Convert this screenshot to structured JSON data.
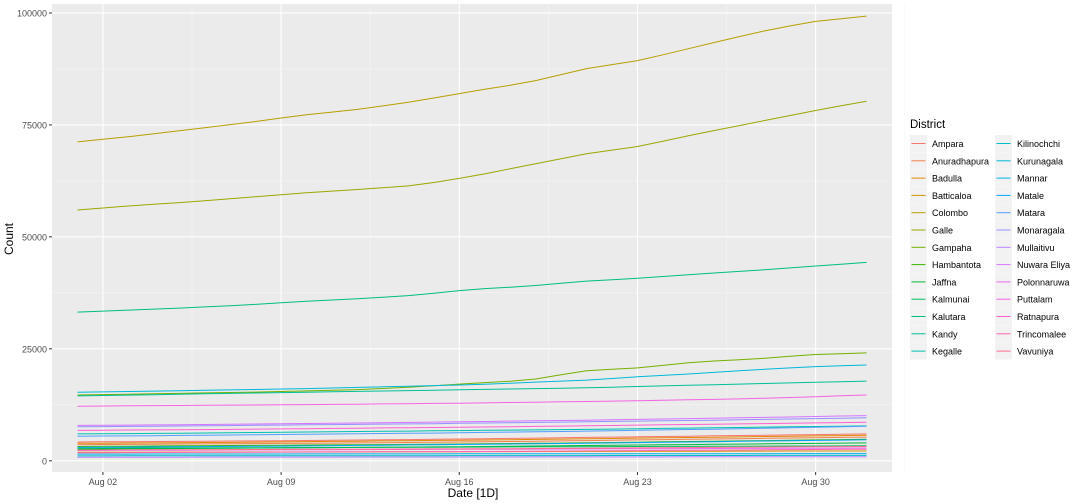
{
  "chart_data": {
    "type": "line",
    "title": "",
    "xlabel": "Date [1D]",
    "ylabel": "Count",
    "x_range": [
      "2021-07-31",
      "2021-09-02"
    ],
    "x_ticks": [
      {
        "date": "2021-08-02",
        "label": "Aug 02"
      },
      {
        "date": "2021-08-09",
        "label": "Aug 09"
      },
      {
        "date": "2021-08-16",
        "label": "Aug 16"
      },
      {
        "date": "2021-08-23",
        "label": "Aug 23"
      },
      {
        "date": "2021-08-30",
        "label": "Aug 30"
      }
    ],
    "ylim": [
      -2500,
      102000
    ],
    "y_ticks": [
      0,
      25000,
      50000,
      75000,
      100000
    ],
    "grid": true,
    "legend_title": "District",
    "legend_position": "right",
    "series": [
      {
        "name": "Ampara",
        "color": "#F8766D",
        "values": [
          [
            4200,
            4300,
            4400,
            4500,
            4650,
            4800,
            5000,
            5200,
            5400,
            5600,
            5800,
            6000
          ]
        ]
      },
      {
        "name": "Anuradhapura",
        "color": "#F0804C",
        "values": [
          [
            3600,
            3700,
            3800,
            3900,
            4000,
            4150,
            4300,
            4500,
            4700,
            4900,
            5100,
            5300
          ]
        ]
      },
      {
        "name": "Badulla",
        "color": "#E38900",
        "values": [
          [
            3900,
            4000,
            4100,
            4250,
            4400,
            4550,
            4700,
            4900,
            5100,
            5300,
            5500,
            5700
          ]
        ]
      },
      {
        "name": "Batticaloa",
        "color": "#D19400",
        "values": [
          [
            1900,
            1920,
            1950,
            1980,
            2000,
            2030,
            2060,
            2090,
            2120,
            2150,
            2180,
            2200
          ]
        ]
      },
      {
        "name": "Colombo",
        "color": "#B79F00",
        "values": [
          [
            71200,
            72500,
            74000,
            75500,
            77200,
            78500,
            80300,
            82500,
            84500,
            87500,
            89500,
            92500,
            95500,
            98000,
            99300
          ]
        ]
      },
      {
        "name": "Galle",
        "color": "#9AA800",
        "values": [
          [
            56000,
            57000,
            57800,
            58800,
            59800,
            60600,
            61500,
            63500,
            66000,
            68500,
            70300,
            73000,
            75500,
            78000,
            80300
          ]
        ]
      },
      {
        "name": "Gampaha",
        "color": "#74B000",
        "values": [
          [
            14700,
            14900,
            15100,
            15300,
            15600,
            15900,
            16500,
            17300,
            18000,
            20100,
            20800,
            22100,
            22700,
            23700,
            24100
          ]
        ]
      },
      {
        "name": "Hambantota",
        "color": "#3AB600",
        "values": [
          [
            3200,
            3300,
            3400,
            3500,
            3600,
            3700,
            3850,
            4000,
            4200,
            4400,
            4600,
            4800
          ]
        ]
      },
      {
        "name": "Jaffna",
        "color": "#00BA38",
        "values": [
          [
            2600,
            2700,
            2800,
            2900,
            3000,
            3100,
            3250,
            3400,
            3550,
            3700,
            3850,
            4000
          ]
        ]
      },
      {
        "name": "Kalmunai",
        "color": "#00BD5F",
        "values": [
          [
            2800,
            2850,
            2900,
            2950,
            3000,
            3050,
            3100,
            3150,
            3200,
            3250,
            3300,
            3350
          ]
        ]
      },
      {
        "name": "Kalutara",
        "color": "#00BF7D",
        "values": [
          [
            33200,
            33700,
            34200,
            34800,
            35600,
            36200,
            37000,
            38300,
            39000,
            40100,
            40800,
            41700,
            42500,
            43400,
            44300
          ]
        ]
      },
      {
        "name": "Kandy",
        "color": "#00C097",
        "values": [
          [
            14500,
            14700,
            14900,
            15100,
            15300,
            15500,
            15700,
            15900,
            16100,
            16300,
            16600,
            16900,
            17200,
            17500,
            17800
          ]
        ]
      },
      {
        "name": "Kegalle",
        "color": "#00C0AF",
        "values": [
          [
            6000,
            6100,
            6250,
            6400,
            6550,
            6700,
            6850,
            7000,
            7200,
            7400,
            7600,
            7800
          ]
        ]
      },
      {
        "name": "Kilinochchi",
        "color": "#00BCC5",
        "values": [
          [
            1100,
            1110,
            1120,
            1130,
            1140,
            1150,
            1160,
            1170,
            1180,
            1190,
            1200,
            1210
          ]
        ]
      },
      {
        "name": "Kurunagala",
        "color": "#00B8D9",
        "values": [
          [
            15300,
            15500,
            15700,
            15900,
            16100,
            16400,
            16700,
            17000,
            17500,
            18000,
            18800,
            19500,
            20300,
            21000,
            21400
          ]
        ]
      },
      {
        "name": "Mannar",
        "color": "#00B0EA",
        "values": [
          [
            1500,
            1510,
            1520,
            1530,
            1540,
            1550,
            1560,
            1570,
            1580,
            1590,
            1600,
            1610
          ]
        ]
      },
      {
        "name": "Matale",
        "color": "#00A6F8",
        "values": [
          [
            3000,
            3100,
            3200,
            3300,
            3450,
            3600,
            3750,
            3900,
            4100,
            4300,
            4500,
            4700
          ]
        ]
      },
      {
        "name": "Matara",
        "color": "#529EFF",
        "values": [
          [
            5500,
            5600,
            5750,
            5900,
            6050,
            6200,
            6400,
            6600,
            6850,
            7100,
            7400,
            7700
          ]
        ]
      },
      {
        "name": "Monaragala",
        "color": "#9590FF",
        "values": [
          [
            7600,
            7700,
            7850,
            8000,
            8150,
            8300,
            8500,
            8700,
            8900,
            9100,
            9350,
            9600
          ]
        ]
      },
      {
        "name": "Mullaitivu",
        "color": "#B983FF",
        "values": [
          [
            800,
            810,
            820,
            830,
            840,
            850,
            860,
            870,
            880,
            890,
            900,
            910
          ]
        ]
      },
      {
        "name": "Nuwara Eliya",
        "color": "#D575FE",
        "values": [
          [
            7900,
            8000,
            8150,
            8300,
            8450,
            8650,
            8850,
            9050,
            9300,
            9550,
            9800,
            10100
          ]
        ]
      },
      {
        "name": "Polonnaruwa",
        "color": "#E76BF3",
        "values": [
          [
            2300,
            2350,
            2400,
            2450,
            2500,
            2550,
            2600,
            2650,
            2700,
            2750,
            2800,
            2850
          ]
        ]
      },
      {
        "name": "Puttalam",
        "color": "#F564E3",
        "values": [
          [
            12200,
            12300,
            12400,
            12500,
            12600,
            12750,
            12900,
            13100,
            13300,
            13550,
            13800,
            14200,
            14700
          ]
        ]
      },
      {
        "name": "Ratnapura",
        "color": "#FD61D1",
        "values": [
          [
            6800,
            6900,
            7000,
            7150,
            7300,
            7450,
            7600,
            7800,
            8000,
            8200,
            8400,
            8600
          ]
        ]
      },
      {
        "name": "Trincomalee",
        "color": "#FF64B0",
        "values": [
          [
            1800,
            1850,
            1900,
            1950,
            2000,
            2050,
            2100,
            2200,
            2300,
            2400,
            2500,
            2600
          ]
        ]
      },
      {
        "name": "Vavuniya",
        "color": "#FF6C91",
        "values": [
          [
            2400,
            2450,
            2500,
            2550,
            2600,
            2650,
            2700,
            2800,
            2900,
            3000,
            3100,
            3200
          ]
        ]
      }
    ]
  }
}
